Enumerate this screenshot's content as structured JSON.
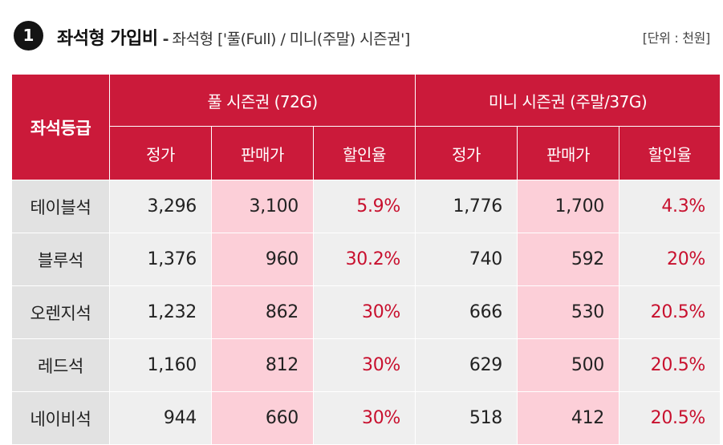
{
  "header": {
    "number": "1",
    "title": "좌석형 가입비",
    "separator": "-",
    "subtitle": "좌석형 ['풀(Full) / 미니(주말) 시즌권']",
    "unit_note": "[단위 : 천원]"
  },
  "table": {
    "grade_header": "좌석등급",
    "full_group_header": "풀 시즌권 (72G)",
    "mini_group_header": "미니 시즌권 (주말/37G)",
    "col_regular": "정가",
    "col_sale": "판매가",
    "col_discount": "할인율",
    "rows": [
      {
        "grade": "테이블석",
        "full_regular": "3,296",
        "full_sale": "3,100",
        "full_discount": "5.9%",
        "mini_regular": "1,776",
        "mini_sale": "1,700",
        "mini_discount": "4.3%"
      },
      {
        "grade": "블루석",
        "full_regular": "1,376",
        "full_sale": "960",
        "full_discount": "30.2%",
        "mini_regular": "740",
        "mini_sale": "592",
        "mini_discount": "20%"
      },
      {
        "grade": "오렌지석",
        "full_regular": "1,232",
        "full_sale": "862",
        "full_discount": "30%",
        "mini_regular": "666",
        "mini_sale": "530",
        "mini_discount": "20.5%"
      },
      {
        "grade": "레드석",
        "full_regular": "1,160",
        "full_sale": "812",
        "full_discount": "30%",
        "mini_regular": "629",
        "mini_sale": "500",
        "mini_discount": "20.5%"
      },
      {
        "grade": "네이비석",
        "full_regular": "944",
        "full_sale": "660",
        "full_discount": "30%",
        "mini_regular": "518",
        "mini_sale": "412",
        "mini_discount": "20.5%"
      }
    ]
  },
  "colors": {
    "header_red": "#cb1a3a",
    "sale_pink": "#fccfd8",
    "discount_text": "#c8102e",
    "cell_gray": "#efefef",
    "grade_gray": "#e2e2e2"
  }
}
